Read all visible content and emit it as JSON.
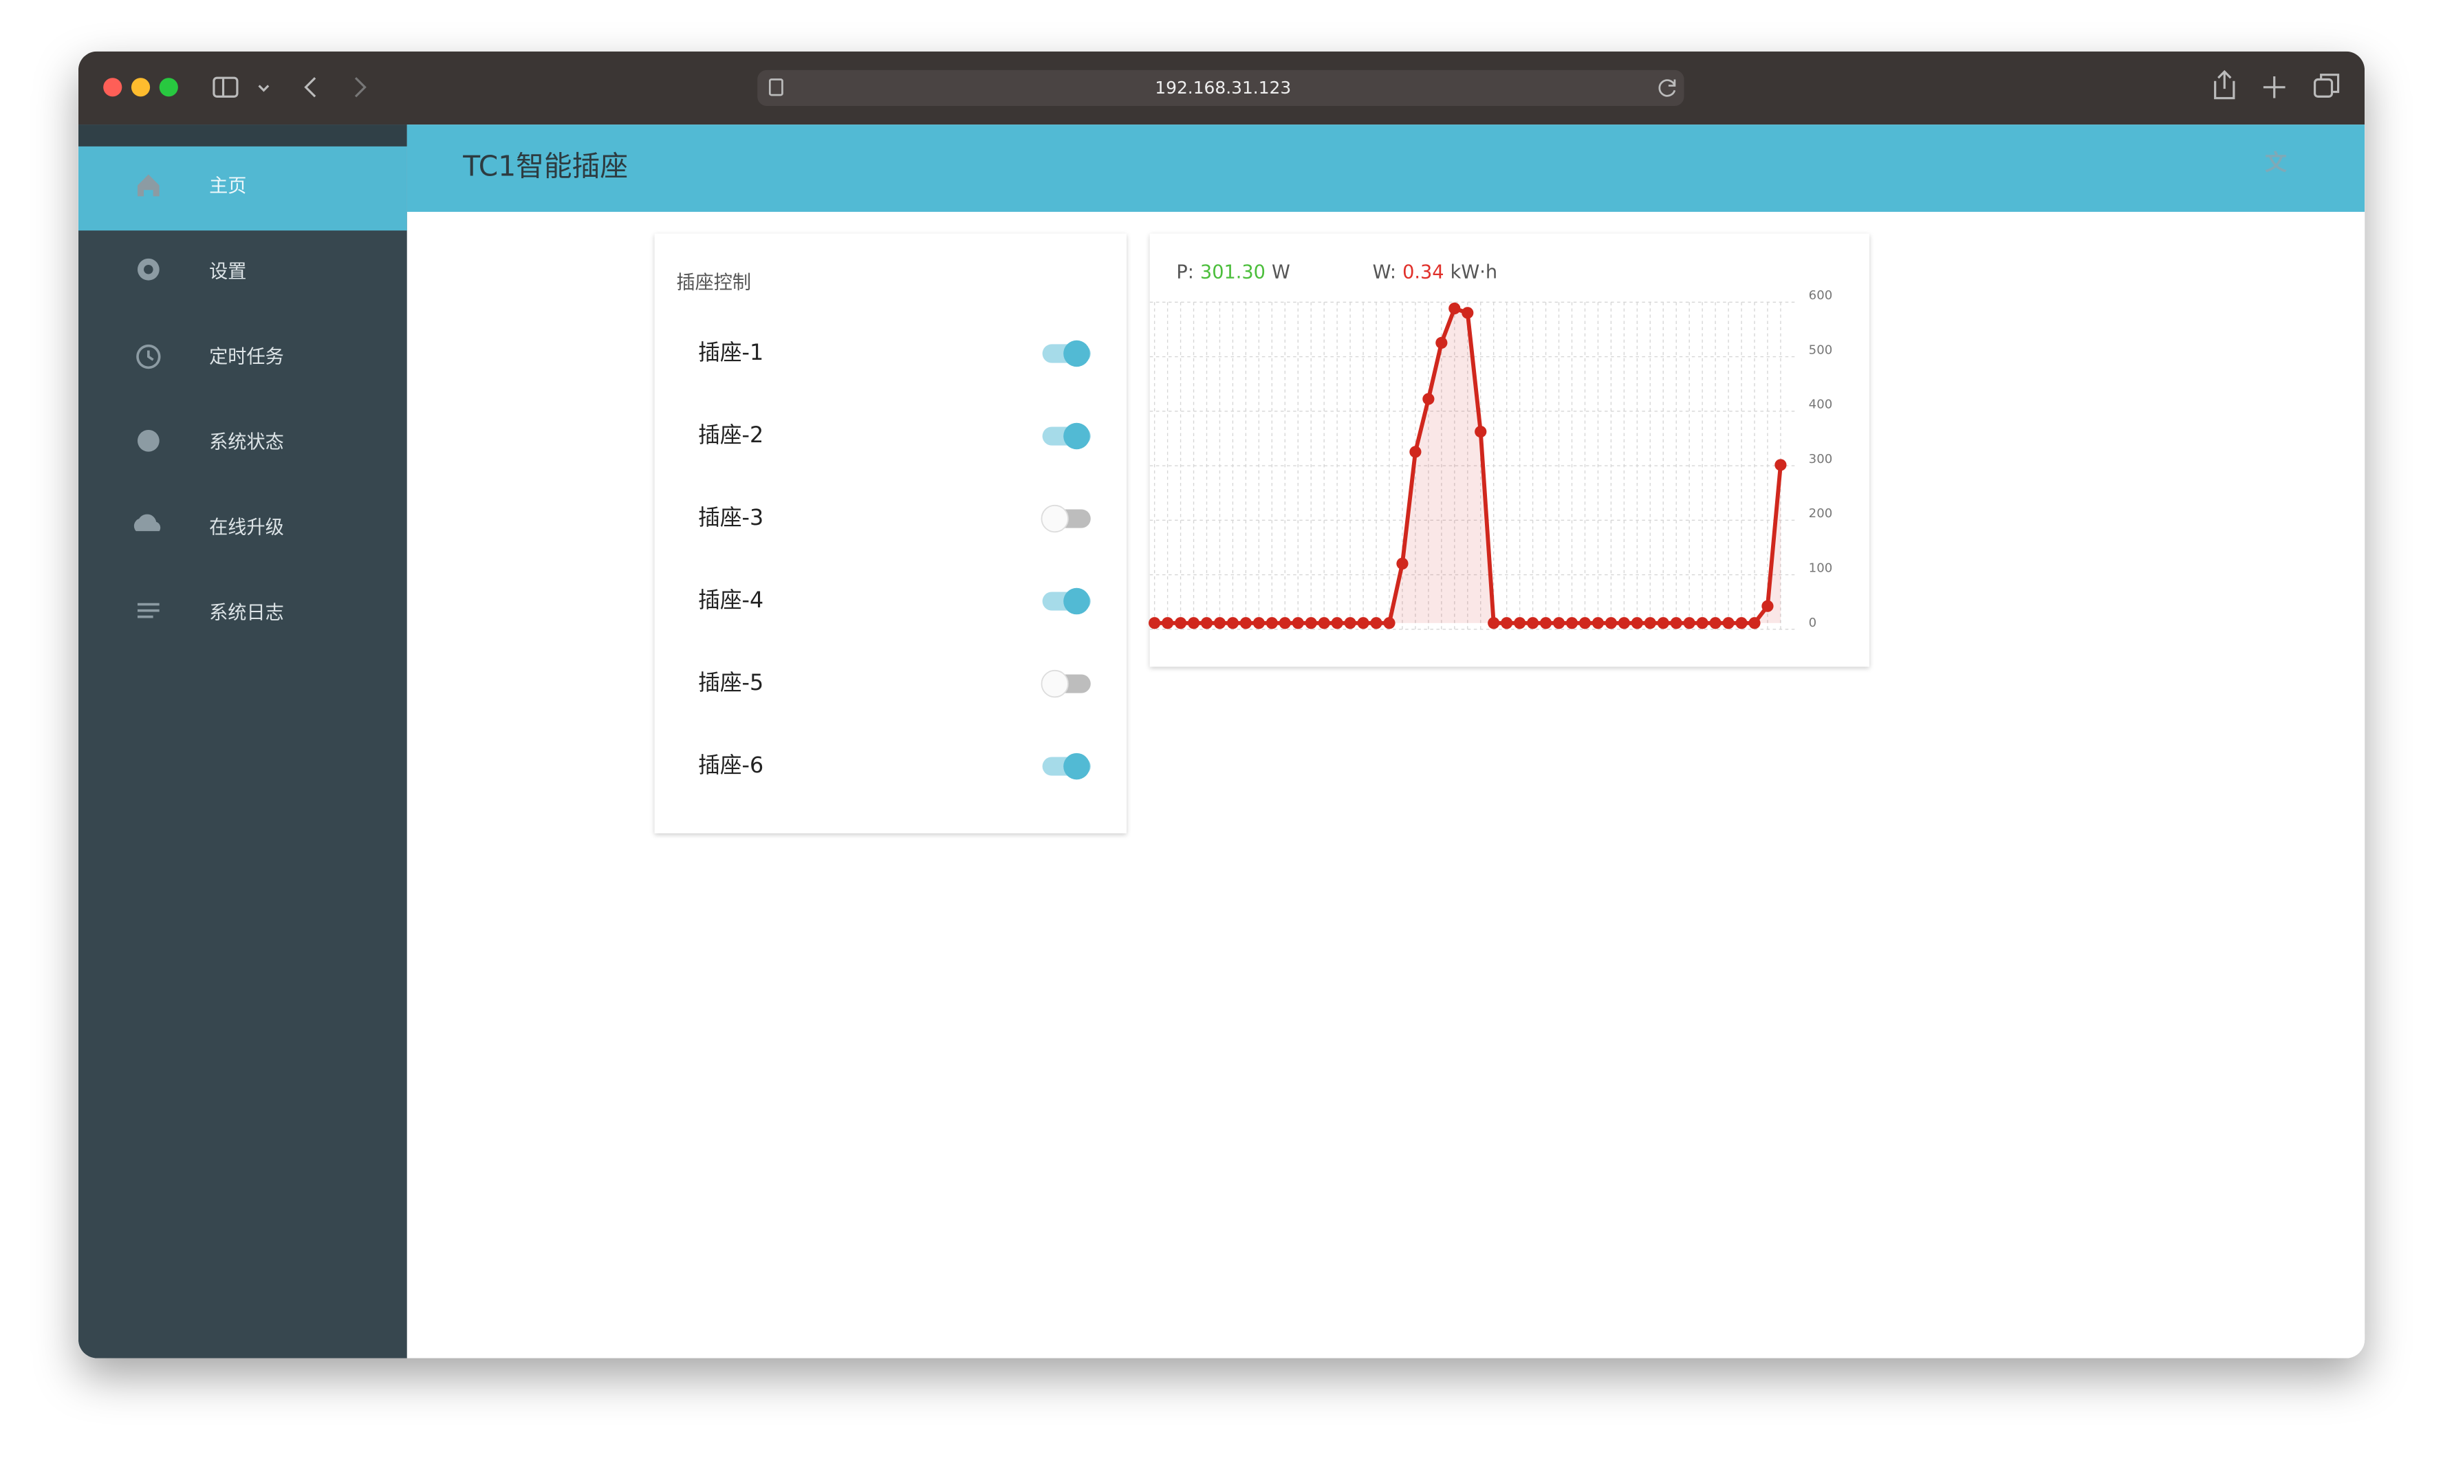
{
  "browser": {
    "url": "192.168.31.123"
  },
  "header": {
    "title": "TC1智能插座"
  },
  "sidebar": {
    "items": [
      {
        "label": "主页",
        "active": true
      },
      {
        "label": "设置",
        "active": false
      },
      {
        "label": "定时任务",
        "active": false
      },
      {
        "label": "系统状态",
        "active": false
      },
      {
        "label": "在线升级",
        "active": false
      },
      {
        "label": "系统日志",
        "active": false
      }
    ]
  },
  "control_card": {
    "title": "插座控制",
    "sockets": [
      {
        "label": "插座-1",
        "on": true
      },
      {
        "label": "插座-2",
        "on": true
      },
      {
        "label": "插座-3",
        "on": false
      },
      {
        "label": "插座-4",
        "on": true
      },
      {
        "label": "插座-5",
        "on": false
      },
      {
        "label": "插座-6",
        "on": true
      }
    ]
  },
  "readouts": {
    "power_label": "P:",
    "power_value": "301.30",
    "power_unit": "W",
    "energy_label": "W:",
    "energy_value": "0.34",
    "energy_unit": "kW·h"
  },
  "chart_data": {
    "type": "line",
    "color": "#d0271d",
    "fill": "rgba(214,60,60,0.12)",
    "values": [
      0,
      0,
      0,
      0,
      0,
      0,
      0,
      0,
      0,
      0,
      0,
      0,
      0,
      0,
      0,
      0,
      0,
      0,
      0,
      109,
      314,
      411,
      514,
      577,
      569,
      351,
      0,
      0,
      0,
      0,
      0,
      0,
      0,
      0,
      0,
      0,
      0,
      0,
      0,
      0,
      0,
      0,
      0,
      0,
      0,
      0,
      0,
      31,
      290
    ],
    "ylim": [
      0,
      600
    ],
    "yticks": [
      0,
      100,
      200,
      300,
      400,
      500,
      600
    ],
    "grid": true
  }
}
